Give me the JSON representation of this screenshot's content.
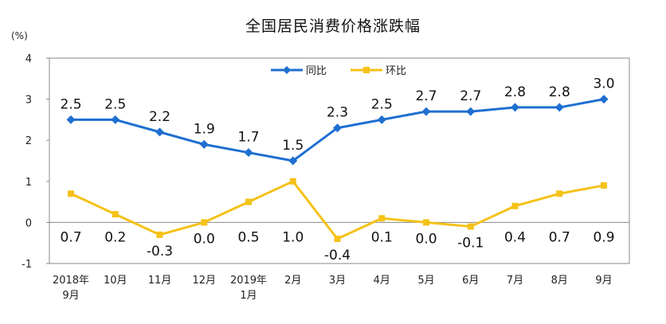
{
  "chart_data": {
    "type": "line",
    "title": "全国居民消费价格涨跌幅",
    "ylabel": "(%)",
    "xlabel": "",
    "ylim": [
      -1,
      4
    ],
    "yticks": [
      4,
      3,
      2,
      1,
      0,
      -1
    ],
    "grid": false,
    "legend_position": "top",
    "categories": [
      [
        "2018年",
        "9月"
      ],
      [
        "10月"
      ],
      [
        "11月"
      ],
      [
        "12月"
      ],
      [
        "2019年",
        "1月"
      ],
      [
        "2月"
      ],
      [
        "3月"
      ],
      [
        "4月"
      ],
      [
        "5月"
      ],
      [
        "6月"
      ],
      [
        "7月"
      ],
      [
        "8月"
      ],
      [
        "9月"
      ]
    ],
    "series": [
      {
        "name": "同比",
        "color": "#1f6fd1",
        "marker": "diamond",
        "values": [
          2.5,
          2.5,
          2.2,
          1.9,
          1.7,
          1.5,
          2.3,
          2.5,
          2.7,
          2.7,
          2.8,
          2.8,
          3.0
        ],
        "labels": [
          "2.5",
          "2.5",
          "2.2",
          "1.9",
          "1.7",
          "1.5",
          "2.3",
          "2.5",
          "2.7",
          "2.7",
          "2.8",
          "2.8",
          "3.0"
        ]
      },
      {
        "name": "环比",
        "color": "#f5c218",
        "marker": "square",
        "values": [
          0.7,
          0.2,
          -0.3,
          0.0,
          0.5,
          1.0,
          -0.4,
          0.1,
          0.0,
          -0.1,
          0.4,
          0.7,
          0.9
        ],
        "labels": [
          "0.7",
          "0.2",
          "-0.3",
          "0.0",
          "0.5",
          "1.0",
          "-0.4",
          "0.1",
          "0.0",
          "-0.1",
          "0.4",
          "0.7",
          "0.9"
        ]
      }
    ]
  }
}
